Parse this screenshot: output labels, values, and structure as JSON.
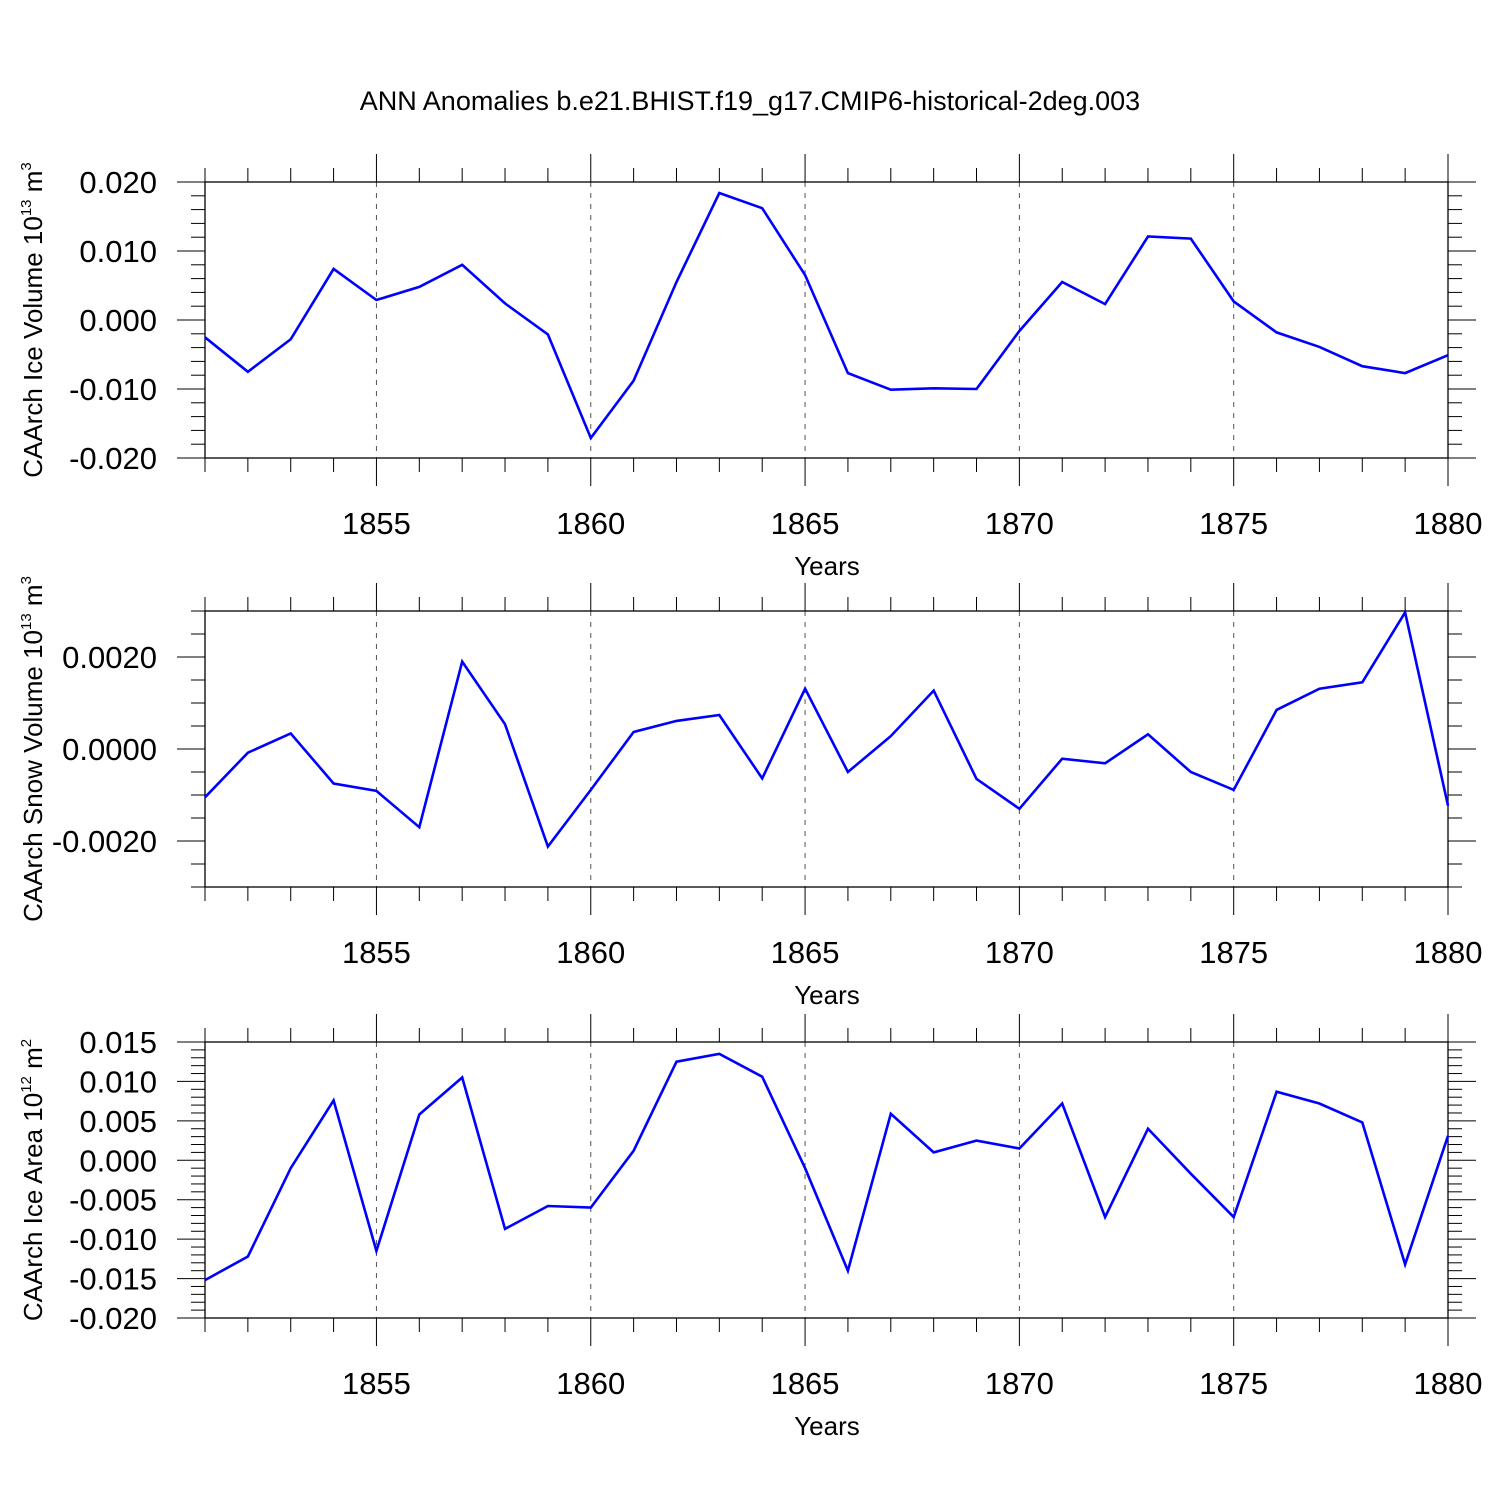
{
  "title": "ANN Anomalies b.e21.BHIST.f19_g17.CMIP6-historical-2deg.003",
  "colors": {
    "line": "#0000ff",
    "axis": "#000000",
    "grid": "#555555"
  },
  "chart_data": [
    {
      "type": "line",
      "series_name": "CAArch Ice Volume",
      "ylabel": "CAArch Ice Volume 10",
      "ylabel_exp": "13",
      "ylabel_unit": " m",
      "ylabel_unit_exp": "3",
      "xlabel": "Years",
      "xlim": [
        1851,
        1880
      ],
      "ylim": [
        -0.02,
        0.02
      ],
      "x_ticks": [
        1855,
        1860,
        1865,
        1870,
        1875,
        1880
      ],
      "x_tick_labels": [
        "1855",
        "1860",
        "1865",
        "1870",
        "1875",
        "1880"
      ],
      "y_ticks": [
        0.02,
        0.01,
        0.0,
        -0.01,
        -0.02
      ],
      "y_tick_labels": [
        "0.020",
        "0.010",
        "0.000",
        "-0.010",
        "-0.020"
      ],
      "y_minor_step": 0.002,
      "x": [
        1851,
        1852,
        1853,
        1854,
        1855,
        1856,
        1857,
        1858,
        1859,
        1860,
        1861,
        1862,
        1863,
        1864,
        1865,
        1866,
        1867,
        1868,
        1869,
        1870,
        1871,
        1872,
        1873,
        1874,
        1875,
        1876,
        1877,
        1878,
        1879,
        1880
      ],
      "values": [
        -0.0025,
        -0.0075,
        -0.0028,
        0.0074,
        0.0029,
        0.0048,
        0.008,
        0.0024,
        -0.0021,
        -0.0171,
        -0.0088,
        0.0055,
        0.0184,
        0.0162,
        0.0065,
        -0.0077,
        -0.0101,
        -0.0099,
        -0.01,
        -0.0016,
        0.0055,
        0.0023,
        0.0121,
        0.0118,
        0.0027,
        -0.0018,
        -0.0039,
        -0.0067,
        -0.0077,
        -0.0051
      ]
    },
    {
      "type": "line",
      "series_name": "CAArch Snow Volume",
      "ylabel": "CAArch Snow Volume 10",
      "ylabel_exp": "13",
      "ylabel_unit": " m",
      "ylabel_unit_exp": "3",
      "xlabel": "Years",
      "xlim": [
        1851,
        1880
      ],
      "ylim": [
        -0.003,
        0.003
      ],
      "x_ticks": [
        1855,
        1860,
        1865,
        1870,
        1875,
        1880
      ],
      "x_tick_labels": [
        "1855",
        "1860",
        "1865",
        "1870",
        "1875",
        "1880"
      ],
      "y_ticks": [
        0.002,
        0.0,
        -0.002
      ],
      "y_tick_labels": [
        "0.0020",
        "0.0000",
        "-0.0020"
      ],
      "y_minor_step": 0.0005,
      "x": [
        1851,
        1852,
        1853,
        1854,
        1855,
        1856,
        1857,
        1858,
        1859,
        1860,
        1861,
        1862,
        1863,
        1864,
        1865,
        1866,
        1867,
        1868,
        1869,
        1870,
        1871,
        1872,
        1873,
        1874,
        1875,
        1876,
        1877,
        1878,
        1879,
        1880
      ],
      "values": [
        -0.00105,
        -8e-05,
        0.00034,
        -0.00075,
        -0.00091,
        -0.0017,
        0.0019,
        0.00054,
        -0.00212,
        -0.00089,
        0.00037,
        0.00061,
        0.00074,
        -0.00064,
        0.00131,
        -0.0005,
        0.00028,
        0.00127,
        -0.00065,
        -0.0013,
        -0.00021,
        -0.00031,
        0.00032,
        -0.0005,
        -0.00089,
        0.00085,
        0.00131,
        0.00145,
        0.00297,
        -0.00123
      ]
    },
    {
      "type": "line",
      "series_name": "CAArch Ice Area",
      "ylabel": "CAArch Ice Area 10",
      "ylabel_exp": "12",
      "ylabel_unit": " m",
      "ylabel_unit_exp": "2",
      "xlabel": "Years",
      "xlim": [
        1851,
        1880
      ],
      "ylim": [
        -0.02,
        0.015
      ],
      "x_ticks": [
        1855,
        1860,
        1865,
        1870,
        1875,
        1880
      ],
      "x_tick_labels": [
        "1855",
        "1860",
        "1865",
        "1870",
        "1875",
        "1880"
      ],
      "y_ticks": [
        0.015,
        0.01,
        0.005,
        0.0,
        -0.005,
        -0.01,
        -0.015,
        -0.02
      ],
      "y_tick_labels": [
        "0.015",
        "0.010",
        "0.005",
        "0.000",
        "-0.005",
        "-0.010",
        "-0.015",
        "-0.020"
      ],
      "y_minor_step": 0.001,
      "x": [
        1851,
        1852,
        1853,
        1854,
        1855,
        1856,
        1857,
        1858,
        1859,
        1860,
        1861,
        1862,
        1863,
        1864,
        1865,
        1866,
        1867,
        1868,
        1869,
        1870,
        1871,
        1872,
        1873,
        1874,
        1875,
        1876,
        1877,
        1878,
        1879,
        1880
      ],
      "values": [
        -0.0152,
        -0.0122,
        -0.001,
        0.0076,
        -0.0115,
        0.0058,
        0.0105,
        -0.0087,
        -0.0058,
        -0.006,
        0.0012,
        0.0125,
        0.0135,
        0.0106,
        -0.001,
        -0.014,
        0.0059,
        0.001,
        0.0025,
        0.0015,
        0.0072,
        -0.0072,
        0.004,
        -0.0017,
        -0.0072,
        0.0087,
        0.0072,
        0.0048,
        -0.0132,
        0.0031
      ]
    }
  ]
}
